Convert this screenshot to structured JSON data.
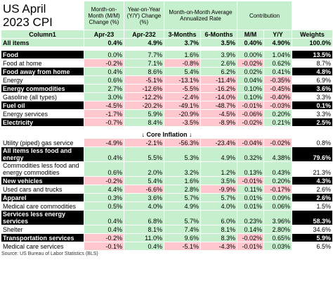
{
  "title": "US April\n2023 CPI",
  "group_headers": [
    "Month-on-Month (M/M) Change (%)",
    "Year-on-Year (Y/Y) Change (%)",
    "Month-on-Month Average Annualized Rate",
    "Contribution"
  ],
  "columns": [
    "Column1",
    "Apr-23",
    "Apr-232",
    "3-Months",
    "6-Months",
    "M/M",
    "Y/Y",
    "Weights"
  ],
  "all_items": {
    "label": "All items",
    "cells": [
      "0.4%",
      "4.9%",
      "3.7%",
      "3.5%",
      "0.40%",
      "4.90%",
      "100.0%"
    ]
  },
  "sections": [
    {
      "rows": [
        {
          "label": "Food",
          "cells": [
            "0.0%",
            "7.7%",
            "1.6%",
            "3.9%",
            "0.00%",
            "1.04%",
            "13.5%"
          ]
        },
        {
          "label": "Food at home",
          "cells": [
            "-0.2%",
            "7.1%",
            "-0.8%",
            "2.6%",
            "-0.02%",
            "0.62%",
            "8.7%"
          ]
        },
        {
          "label": "Food away from home",
          "cells": [
            "0.4%",
            "8.6%",
            "5.4%",
            "6.2%",
            "0.02%",
            "0.41%",
            "4.8%"
          ]
        },
        {
          "label": "Energy",
          "cells": [
            "0.6%",
            "-5.1%",
            "-13.1%",
            "-11.4%",
            "0.04%",
            "-0.35%",
            "6.9%"
          ]
        },
        {
          "label": "Energy commodities",
          "cells": [
            "2.7%",
            "-12.6%",
            "-5.5%",
            "-16.2%",
            "0.10%",
            "-0.45%",
            "3.6%"
          ]
        },
        {
          "label": "Gasoline (all types)",
          "cells": [
            "3.0%",
            "-12.2%",
            "-2.4%",
            "-14.0%",
            "0.10%",
            "-0.40%",
            "3.3%"
          ]
        },
        {
          "label": "Fuel oil",
          "cells": [
            "-4.5%",
            "-20.2%",
            "-49.1%",
            "-48.7%",
            "-0.01%",
            "-0.03%",
            "0.1%"
          ]
        },
        {
          "label": "Energy services",
          "cells": [
            "-1.7%",
            "5.9%",
            "-20.9%",
            "-4.5%",
            "-0.06%",
            "0.20%",
            "3.3%"
          ]
        },
        {
          "label": "Electricity",
          "cells": [
            "-0.7%",
            "8.4%",
            "-3.5%",
            "-8.9%",
            "-0.02%",
            "0.21%",
            "2.5%"
          ]
        }
      ]
    },
    {
      "separator": "↓ Core Inflation ↓",
      "rows": [
        {
          "label": "Utility (piped) gas service",
          "cells": [
            "-4.9%",
            "-2.1%",
            "-56.3%",
            "-23.4%",
            "-0.04%",
            "-0.02%",
            "0.8%"
          ]
        },
        {
          "label": "All items less food and energy",
          "cells": [
            "0.4%",
            "5.5%",
            "5.3%",
            "4.9%",
            "0.32%",
            "4.38%",
            "79.6%"
          ]
        },
        {
          "label": "Commodities less food and energy commodities",
          "cells": [
            "0.6%",
            "2.0%",
            "3.2%",
            "1.2%",
            "0.13%",
            "0.43%",
            "21.3%"
          ]
        },
        {
          "label": "New vehicles",
          "cells": [
            "-0.2%",
            "5.4%",
            "1.6%",
            "3.5%",
            "-0.01%",
            "0.20%",
            "4.3%"
          ]
        },
        {
          "label": "Used cars and trucks",
          "cells": [
            "4.4%",
            "-6.6%",
            "2.8%",
            "-9.9%",
            "0.11%",
            "-0.17%",
            "2.6%"
          ]
        },
        {
          "label": "Apparel",
          "cells": [
            "0.3%",
            "3.6%",
            "5.7%",
            "5.7%",
            "0.01%",
            "0.09%",
            "2.6%"
          ]
        },
        {
          "label": "Medical care commodities",
          "cells": [
            "0.5%",
            "4.0%",
            "4.9%",
            "4.0%",
            "0.01%",
            "0.06%",
            "1.5%"
          ]
        },
        {
          "label": "Services less energy services",
          "cells": [
            "0.4%",
            "6.8%",
            "5.7%",
            "6.0%",
            "0.23%",
            "3.96%",
            "58.3%"
          ]
        },
        {
          "label": "Shelter",
          "cells": [
            "0.4%",
            "8.1%",
            "7.4%",
            "8.1%",
            "0.14%",
            "2.80%",
            "34.6%"
          ]
        },
        {
          "label": "Transportation services",
          "cells": [
            "-0.2%",
            "11.0%",
            "9.6%",
            "8.3%",
            "-0.02%",
            "0.65%",
            "5.9%"
          ]
        },
        {
          "label": "Medical care services",
          "cells": [
            "-0.1%",
            "0.4%",
            "-5.1%",
            "-4.3%",
            "-0.01%",
            "0.03%",
            "6.5%"
          ]
        }
      ]
    }
  ],
  "source": "Source: US Bureau of Labor Statistics (BLS)"
}
